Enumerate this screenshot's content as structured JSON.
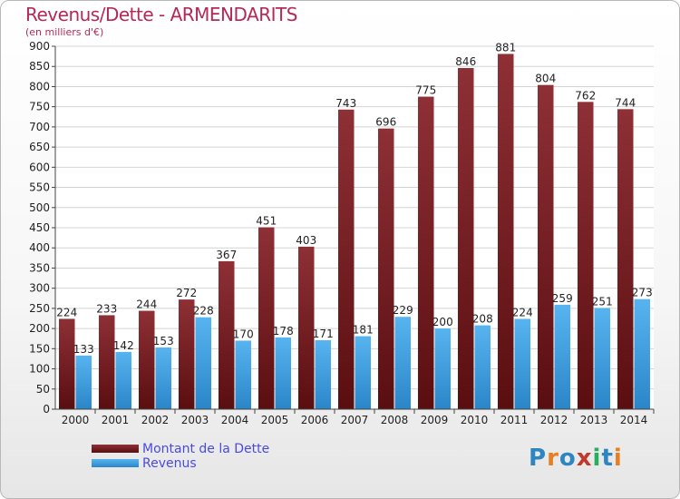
{
  "header": {
    "title": "Revenus/Dette - ARMENDARITS",
    "subtitle": "(en milliers d'€)"
  },
  "chart_data": {
    "type": "bar",
    "categories": [
      "2000",
      "2001",
      "2002",
      "2003",
      "2004",
      "2005",
      "2006",
      "2007",
      "2008",
      "2009",
      "2010",
      "2011",
      "2012",
      "2013",
      "2014"
    ],
    "series": [
      {
        "name": "Montant de la Dette",
        "color": "#7a1f22",
        "values": [
          224,
          233,
          244,
          272,
          367,
          451,
          403,
          743,
          696,
          775,
          846,
          881,
          804,
          762,
          744
        ]
      },
      {
        "name": "Revenus",
        "color": "#3d9ee0",
        "values": [
          133,
          142,
          153,
          228,
          170,
          178,
          171,
          181,
          229,
          200,
          208,
          224,
          259,
          251,
          273
        ]
      }
    ],
    "ylim": [
      0,
      900
    ],
    "yticks": [
      0,
      50,
      100,
      150,
      200,
      250,
      300,
      350,
      400,
      450,
      500,
      550,
      600,
      650,
      700,
      750,
      800,
      850,
      900
    ],
    "grid": true,
    "legend_position": "bottom-left"
  },
  "legend": {
    "items": [
      {
        "label": "Montant de la Dette",
        "color": "#7a1f22"
      },
      {
        "label": "Revenus",
        "color": "#3d9ee0"
      }
    ]
  },
  "logo": {
    "text": "Proxiti",
    "colors": [
      "#2e86c1",
      "#e67e22",
      "#2e86c1",
      "#c0392b",
      "#27ae60",
      "#2e86c1",
      "#e67e22"
    ]
  }
}
